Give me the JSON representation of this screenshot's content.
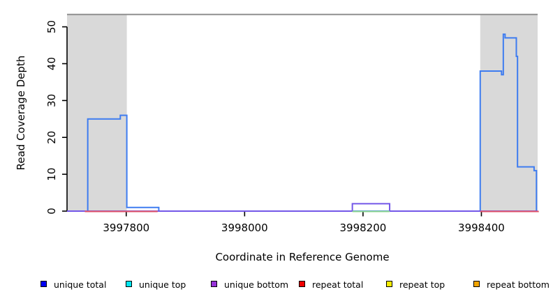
{
  "chart_data": {
    "type": "line",
    "subtype": "step-coverage",
    "title": "",
    "xlabel": "Coordinate in Reference Genome",
    "ylabel": "Read Coverage Depth",
    "xlim": [
      3997700,
      3998495
    ],
    "ylim": [
      0,
      53.5
    ],
    "x_ticks": [
      3997800,
      3998000,
      3998200,
      3998400
    ],
    "y_ticks": [
      0,
      10,
      20,
      30,
      40,
      50
    ],
    "grid": false,
    "legend_position": "bottom",
    "repeat_regions": [
      {
        "start": 3997700,
        "end": 3997801
      },
      {
        "start": 3998398,
        "end": 3998495
      }
    ],
    "top_boundary_value": 53.5,
    "series": [
      {
        "name": "unique total",
        "color": "#3e7cf0",
        "steps": [
          [
            3997700,
            0
          ],
          [
            3997735,
            25
          ],
          [
            3997790,
            26
          ],
          [
            3997801,
            1
          ],
          [
            3997855,
            0
          ],
          [
            3998398,
            38
          ],
          [
            3998434,
            37
          ],
          [
            3998437,
            48
          ],
          [
            3998440,
            47
          ],
          [
            3998459,
            42
          ],
          [
            3998461,
            12
          ],
          [
            3998489,
            11
          ],
          [
            3998493,
            0
          ],
          [
            3998495,
            0
          ]
        ]
      },
      {
        "name": "unique bottom",
        "color": "#7357e8",
        "steps": [
          [
            3997700,
            0
          ],
          [
            3998182,
            2
          ],
          [
            3998245,
            0
          ],
          [
            3998495,
            0
          ]
        ]
      }
    ],
    "baseline_overlays": [
      {
        "name": "repeat coverage at zero (left repeat region)",
        "color": "#e25568",
        "start": 3997730,
        "end": 3997853,
        "value": 0
      },
      {
        "name": "repeat coverage at zero (right repeat region)",
        "color": "#e25568",
        "start": 3998398,
        "end": 3998497,
        "value": 0
      },
      {
        "name": "unique top coverage at zero (under bump)",
        "color": "#90d890",
        "start": 3998182,
        "end": 3998245,
        "value": 0
      }
    ]
  },
  "legend": {
    "items": [
      {
        "label": "unique total",
        "color": "#0000f5"
      },
      {
        "label": "unique top",
        "color": "#00e6f0"
      },
      {
        "label": "unique bottom",
        "color": "#9632d8"
      },
      {
        "label": "repeat total",
        "color": "#f00000"
      },
      {
        "label": "repeat top",
        "color": "#f5ec00"
      },
      {
        "label": "repeat bottom",
        "color": "#f0a400"
      }
    ]
  },
  "colors": {
    "repeat_region_fill": "#d9d9d9",
    "top_boundary_line": "#8f8f8f",
    "axis": "#000000",
    "background": "#ffffff"
  }
}
